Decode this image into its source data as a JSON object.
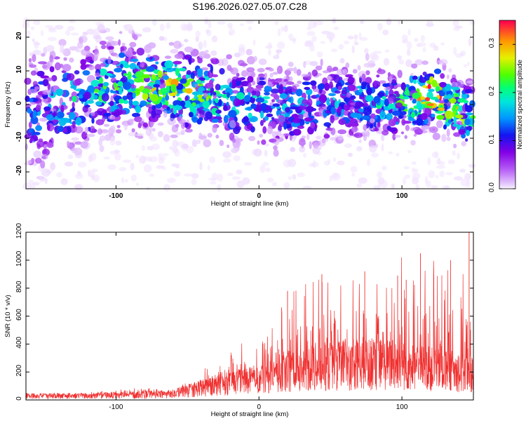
{
  "figure": {
    "title": "S196.2026.027.05.07.C28"
  },
  "chart_data": [
    {
      "type": "heatmap",
      "title": "S196.2026.027.05.07.C28",
      "xlabel": "Height of straight line (km)",
      "ylabel": "Frequency (Hz)",
      "xlim": [
        -163,
        150
      ],
      "ylim": [
        -25,
        25
      ],
      "xticks": [
        -100,
        0,
        100
      ],
      "yticks": [
        -20,
        -10,
        0,
        10,
        20
      ],
      "colorbar": {
        "label": "Normalized spectral amplitude",
        "range": [
          0.0,
          0.35
        ],
        "ticks": [
          "0.0",
          "0.1",
          "0.2",
          "0.3"
        ]
      },
      "trend": [
        {
          "x": -160,
          "f": -2,
          "amp": 0.12,
          "spread": 9
        },
        {
          "x": -130,
          "f": 1,
          "amp": 0.15,
          "spread": 8
        },
        {
          "x": -100,
          "f": 6,
          "amp": 0.18,
          "spread": 7
        },
        {
          "x": -60,
          "f": 5,
          "amp": 0.23,
          "spread": 6
        },
        {
          "x": -20,
          "f": 1,
          "amp": 0.16,
          "spread": 6
        },
        {
          "x": 20,
          "f": -1,
          "amp": 0.14,
          "spread": 6
        },
        {
          "x": 60,
          "f": 1,
          "amp": 0.13,
          "spread": 6
        },
        {
          "x": 100,
          "f": 0,
          "amp": 0.18,
          "spread": 5
        },
        {
          "x": 120,
          "f": 3,
          "amp": 0.28,
          "spread": 5
        },
        {
          "x": 145,
          "f": -3,
          "amp": 0.2,
          "spread": 5
        }
      ]
    },
    {
      "type": "line",
      "xlabel": "Height of straight line (km)",
      "ylabel": "SNR (10 * v/v)",
      "xlim": [
        -163,
        150
      ],
      "ylim": [
        0,
        1200
      ],
      "xticks": [
        -100,
        0,
        100
      ],
      "yticks": [
        0,
        200,
        400,
        600,
        800,
        1000,
        1200
      ],
      "color": "#f03030",
      "envelope": {
        "x": [
          -163,
          -120,
          -80,
          -60,
          -50,
          -30,
          -10,
          0,
          20,
          40,
          60,
          80,
          100,
          120,
          150
        ],
        "mean": [
          30,
          32,
          40,
          45,
          70,
          110,
          140,
          150,
          220,
          250,
          260,
          270,
          260,
          230,
          200
        ],
        "peak": [
          50,
          55,
          90,
          60,
          150,
          280,
          420,
          440,
          780,
          900,
          880,
          920,
          1050,
          1000,
          1200
        ]
      },
      "peaks": [
        {
          "x": 147,
          "y": 1200
        },
        {
          "x": 113,
          "y": 1050
        },
        {
          "x": 134,
          "y": 1000
        },
        {
          "x": 74,
          "y": 920
        },
        {
          "x": 44,
          "y": 900
        },
        {
          "x": 97,
          "y": 890
        },
        {
          "x": 103,
          "y": 860
        },
        {
          "x": 20,
          "y": 780
        }
      ]
    }
  ]
}
